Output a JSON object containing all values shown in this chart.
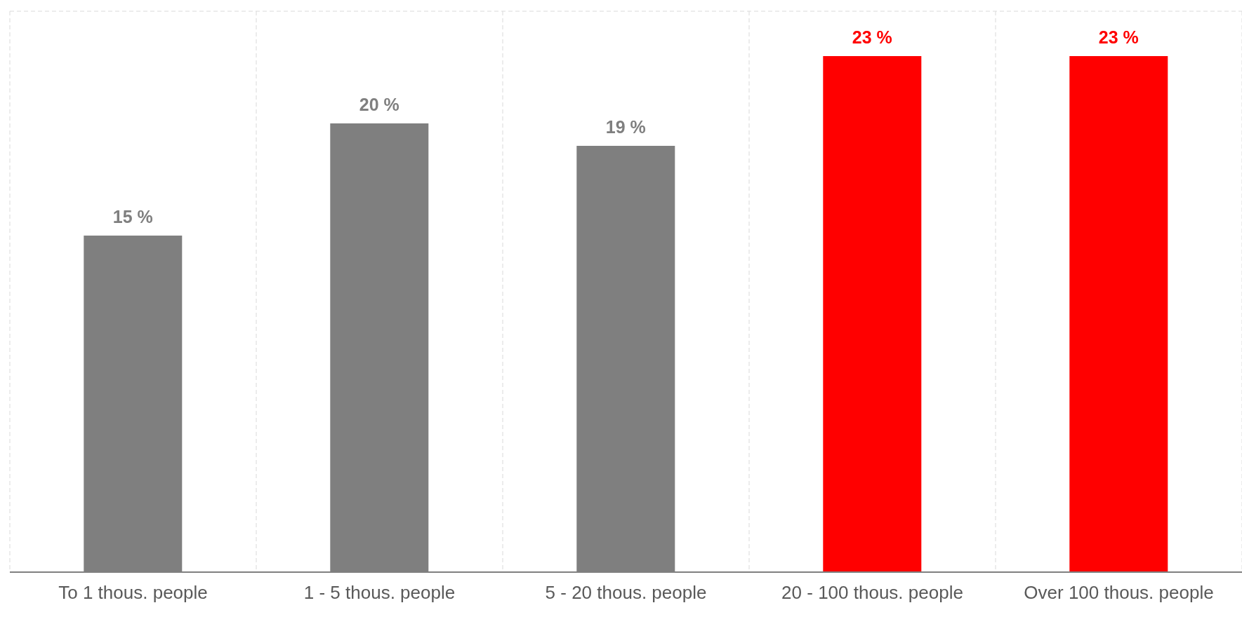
{
  "chart_data": {
    "type": "bar",
    "categories": [
      "To 1 thous. people",
      "1 - 5 thous. people",
      "5 - 20 thous. people",
      "20 - 100 thous. people",
      "Over 100 thous. people"
    ],
    "values": [
      15,
      20,
      19,
      23,
      23
    ],
    "colors": [
      "#7f7f7f",
      "#7f7f7f",
      "#7f7f7f",
      "#ff0000",
      "#ff0000"
    ],
    "value_labels": [
      "15 %",
      "20 %",
      "19 %",
      "23 %",
      "23 %"
    ],
    "tick_labels": "x",
    "grid": true,
    "legend": false
  }
}
